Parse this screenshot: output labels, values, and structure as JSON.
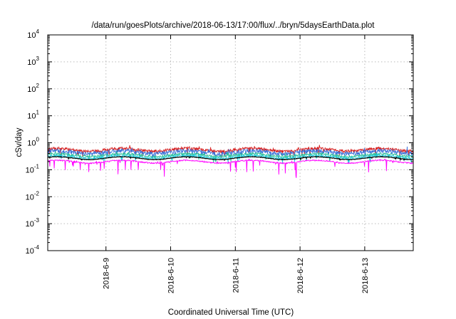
{
  "chart_data": {
    "type": "line",
    "title": "/data/run/goesPlots/archive/2018-06-13/17:00/flux/../bryn/5daysEarthData.plot",
    "xlabel": "Coordinated Universal Time (UTC)",
    "ylabel": "cSv/day",
    "y_scale": "log",
    "ylim": [
      0.0001,
      10000
    ],
    "y_ticks": [
      {
        "value": 0.0001,
        "base": "10",
        "exp": "-4"
      },
      {
        "value": 0.001,
        "base": "10",
        "exp": "-3"
      },
      {
        "value": 0.01,
        "base": "10",
        "exp": "-2"
      },
      {
        "value": 0.1,
        "base": "10",
        "exp": "-1"
      },
      {
        "value": 1,
        "base": "10",
        "exp": "0"
      },
      {
        "value": 10,
        "base": "10",
        "exp": "1"
      },
      {
        "value": 100,
        "base": "10",
        "exp": "2"
      },
      {
        "value": 1000,
        "base": "10",
        "exp": "3"
      },
      {
        "value": 10000,
        "base": "10",
        "exp": "4"
      }
    ],
    "xlim": [
      8.1,
      13.75
    ],
    "x_ticks": [
      {
        "value": 9,
        "label": "2018-6-9"
      },
      {
        "value": 10,
        "label": "2018-6-10"
      },
      {
        "value": 11,
        "label": "2018-6-11"
      },
      {
        "value": 12,
        "label": "2018-6-12"
      },
      {
        "value": 13,
        "label": "2018-6-13"
      }
    ],
    "grid": true,
    "series": [
      {
        "color": "#d62020",
        "base": 0.55,
        "noise": 0.25,
        "dip": 0.55
      },
      {
        "color": "#3a6fd8",
        "base": 0.45,
        "noise": 0.35,
        "dip": 0.55
      },
      {
        "color": "#2dbf9a",
        "base": 0.35,
        "noise": 0.2,
        "dip": 0.6
      },
      {
        "color": "#20d0e0",
        "base": 0.3,
        "noise": 0.15,
        "dip": 0.6
      },
      {
        "color": "#000000",
        "base": 0.27,
        "noise": 0.04,
        "dip": 0.9
      },
      {
        "color": "#ff00ff",
        "base": 0.2,
        "noise": 0.1,
        "dip": 0.25
      }
    ]
  }
}
